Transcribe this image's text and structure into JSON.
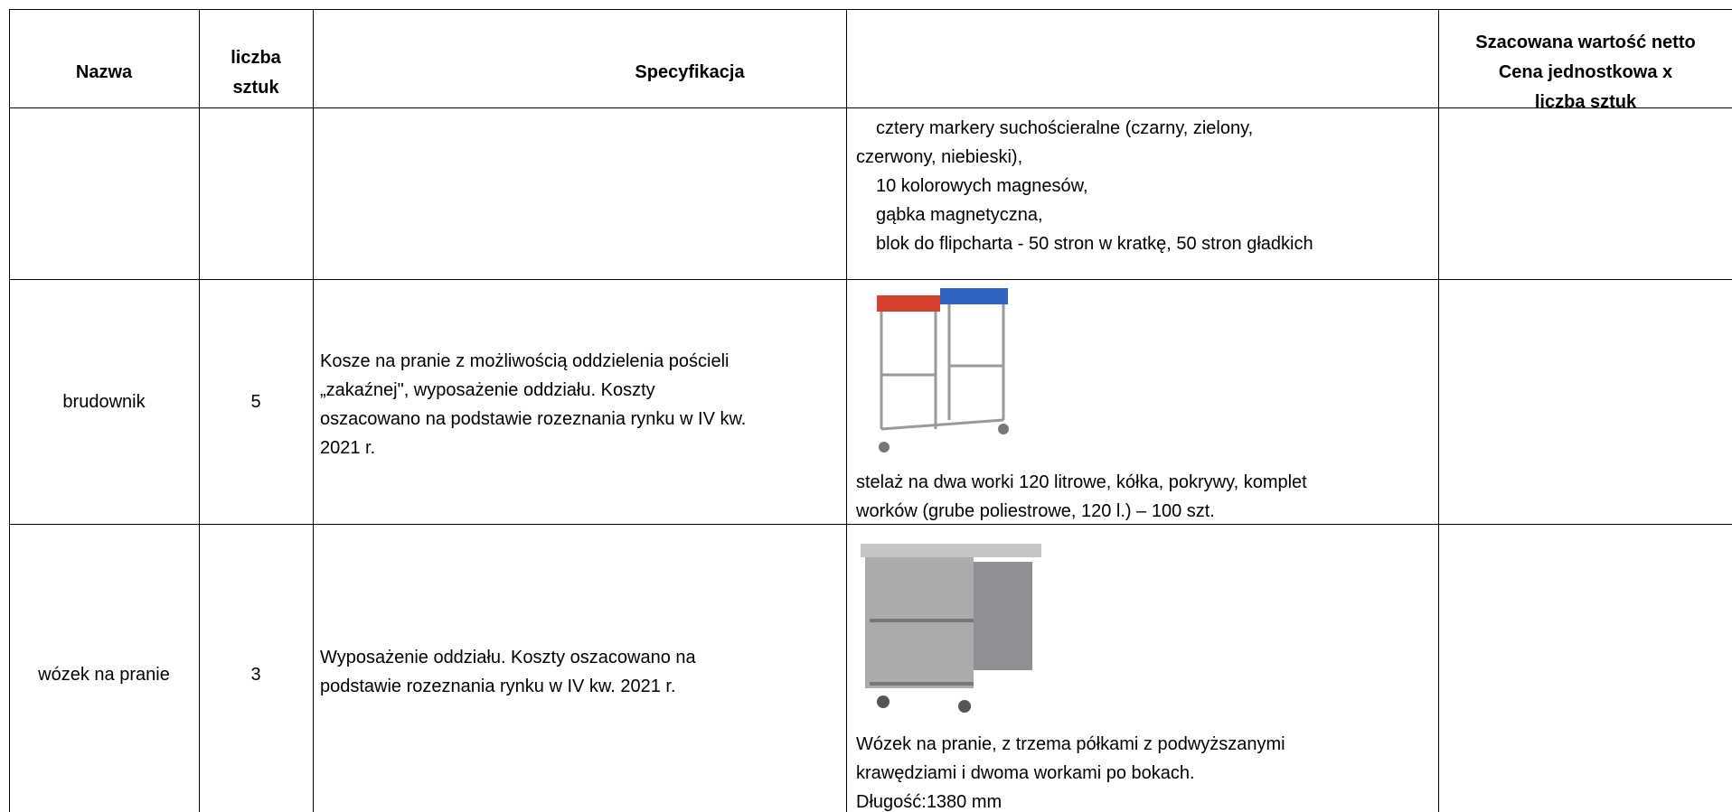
{
  "table": {
    "header": [
      [
        "Nazwa"
      ],
      [
        "liczba",
        "sztuk"
      ],
      [
        "Specyfikacja"
      ],
      [
        "Szacowana wartość netto",
        "Cena jednostkowa x",
        "liczba sztuk"
      ]
    ],
    "rows": [
      {
        "spec": [
          "cztery markery suchościeralne (czarny, zielony,",
          "czerwony, niebieski),",
          "10 kolorowych magnesów,",
          "gąbka magnetyczna,",
          "blok do flipcharta - 50 stron w kratkę, 50 stron gładkich"
        ]
      },
      {
        "name": "brudownik",
        "qty": "5",
        "description": [
          "Kosze na pranie z możliwością oddzielenia pościeli",
          "„zakaźnej\", wyposażenie oddziału. Koszty",
          "oszacowano na podstawie rozeznania rynku w IV kw.",
          "2021 r."
        ],
        "spec": [
          "stelaż na dwa worki 120 litrowe, kółka, pokrywy, komplet",
          "worków (grube poliestrowe, 120 l.) – 100 szt."
        ]
      },
      {
        "name": "wózek na pranie",
        "qty": "3",
        "description": [
          "Wyposażenie oddziału. Koszty oszacowano na",
          "podstawie rozeznania rynku w IV kw. 2021 r."
        ],
        "spec": [
          "Wózek na pranie, z trzema półkami z podwyższanymi",
          "krawędziami i dwoma workami po bokach.",
          "Długość:1380 mm"
        ]
      }
    ]
  }
}
